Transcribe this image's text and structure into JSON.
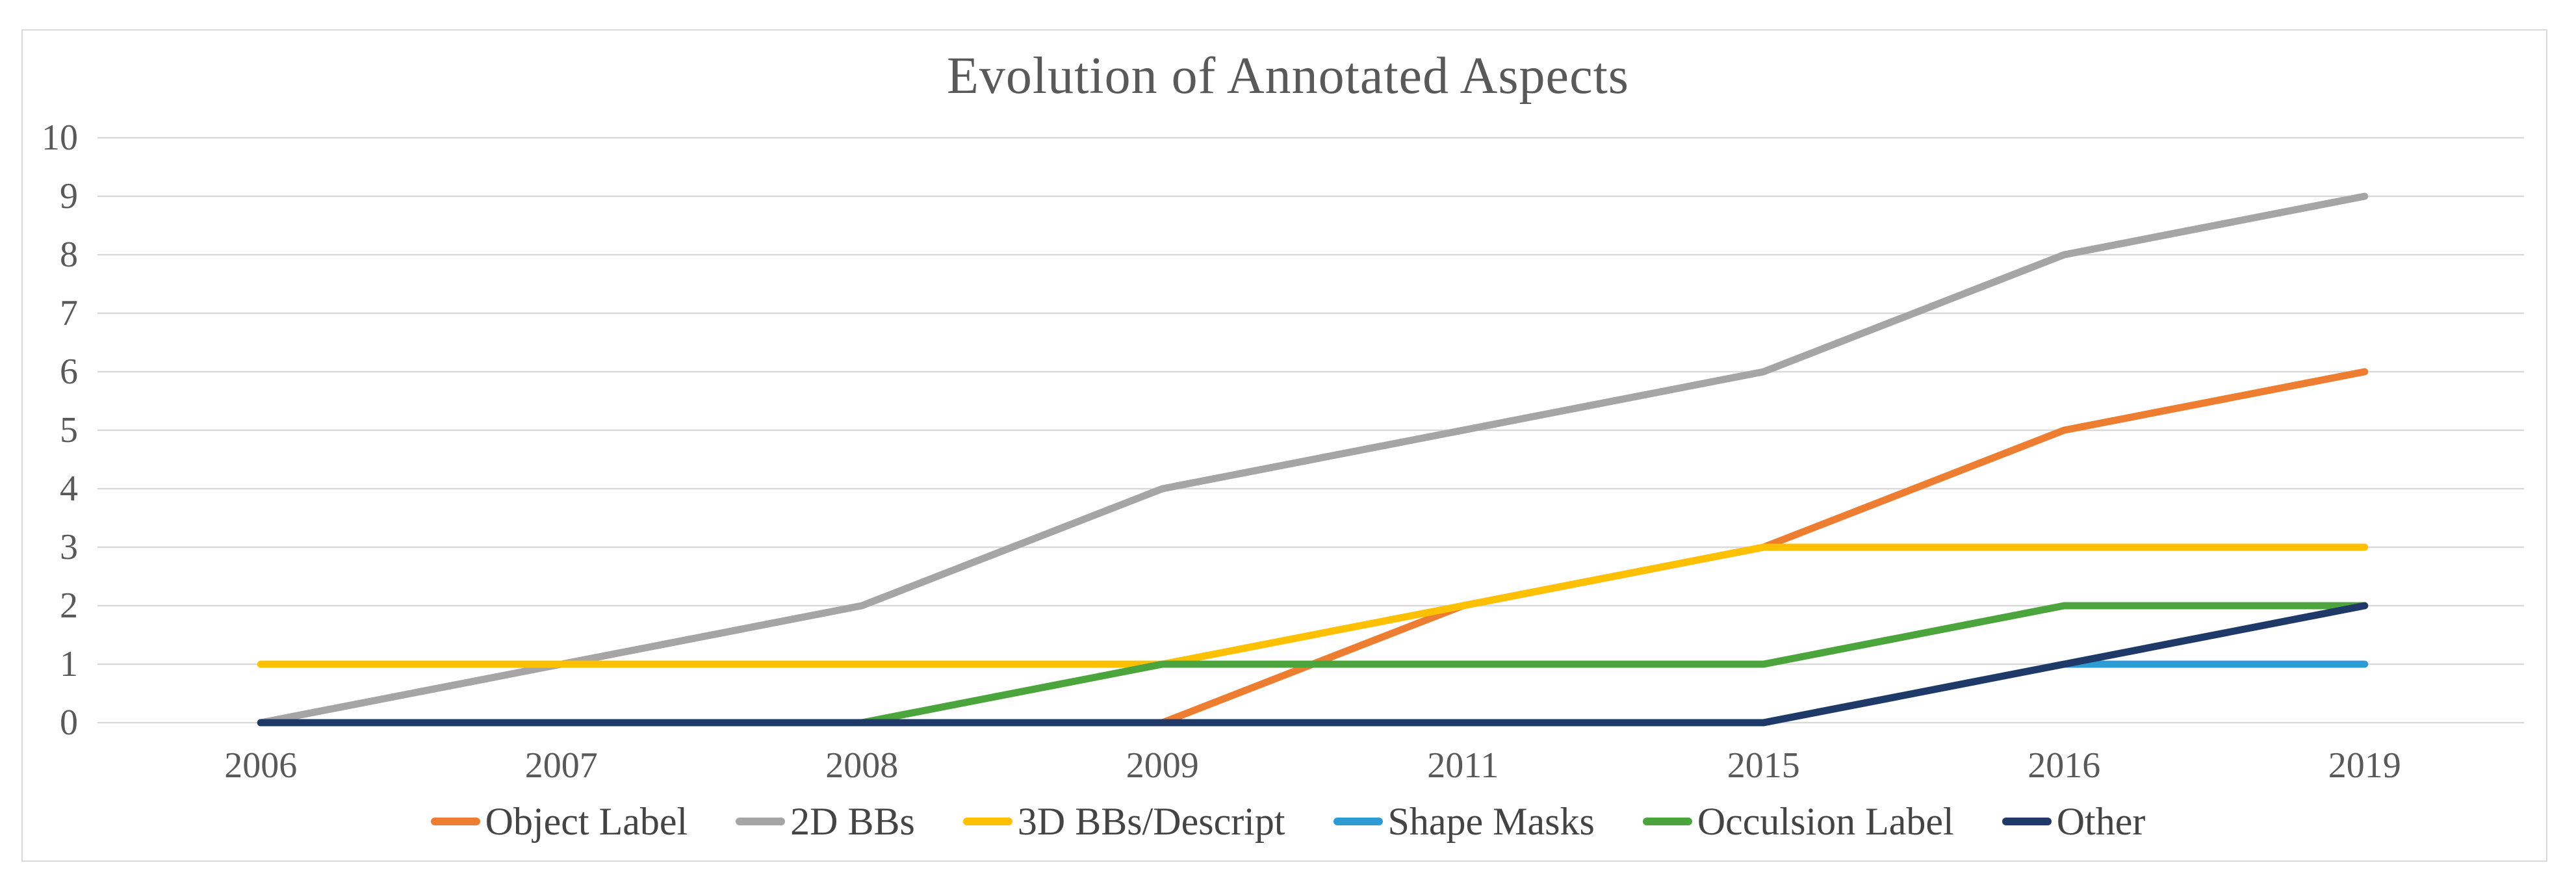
{
  "chart_data": {
    "type": "line",
    "title": "Evolution of Annotated Aspects",
    "categories": [
      "2006",
      "2007",
      "2008",
      "2009",
      "2011",
      "2015",
      "2016",
      "2019"
    ],
    "series": [
      {
        "name": "Object Label",
        "color": "#ED7D31",
        "values": [
          0,
          0,
          0,
          0,
          2,
          3,
          5,
          6
        ]
      },
      {
        "name": "2D BBs",
        "color": "#A5A5A5",
        "values": [
          0,
          1,
          2,
          4,
          5,
          6,
          8,
          9
        ]
      },
      {
        "name": "3D BBs/Descript",
        "color": "#FFC000",
        "values": [
          1,
          1,
          1,
          1,
          2,
          3,
          3,
          3
        ]
      },
      {
        "name": "Shape Masks",
        "color": "#2E9BD5",
        "values": [
          0,
          0,
          0,
          0,
          0,
          0,
          1,
          1
        ]
      },
      {
        "name": "Occulsion Label",
        "color": "#4CA53C",
        "values": [
          0,
          0,
          0,
          1,
          1,
          1,
          2,
          2
        ]
      },
      {
        "name": "Other",
        "color": "#1F3A68",
        "values": [
          0,
          0,
          0,
          0,
          0,
          0,
          1,
          2
        ]
      }
    ],
    "ylim": [
      0,
      10
    ],
    "yticks": [
      0,
      1,
      2,
      3,
      4,
      5,
      6,
      7,
      8,
      9,
      10
    ],
    "grid": "horizontal-only",
    "legend_position": "bottom-center"
  },
  "colors": {
    "grid": "#D9D9D9",
    "frame_border": "#D9D9D9",
    "axis_text": "#595959",
    "legend_text": "#444444",
    "background": "#FFFFFF"
  }
}
